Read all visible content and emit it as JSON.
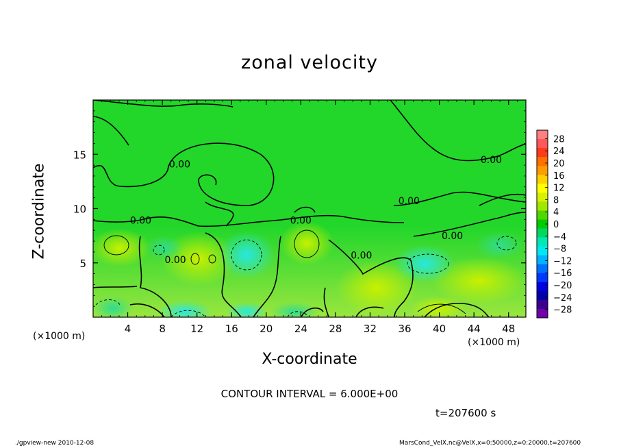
{
  "chart_data": {
    "type": "heatmap",
    "title": "zonal velocity",
    "xlabel": "X-coordinate",
    "ylabel": "Z-coordinate",
    "x_unit": "(×1000 m)",
    "xlim": [
      0,
      50
    ],
    "ylim": [
      0,
      20
    ],
    "x_ticks": [
      4,
      8,
      12,
      16,
      20,
      24,
      28,
      32,
      36,
      40,
      44,
      48
    ],
    "y_ticks": [
      5,
      10,
      15
    ],
    "colorbar": {
      "ticks": [
        28,
        24,
        20,
        16,
        12,
        8,
        4,
        0,
        -4,
        -8,
        -12,
        -16,
        -20,
        -24,
        -28
      ],
      "colors": [
        "#ff8080",
        "#ff5858",
        "#ff3a1a",
        "#ff7000",
        "#ff9c00",
        "#ffd000",
        "#ffff00",
        "#d8f000",
        "#a0e800",
        "#50d800",
        "#00cc00",
        "#00d860",
        "#00e8b8",
        "#00e8f0",
        "#00b4ff",
        "#0070ff",
        "#0038ff",
        "#0000e0",
        "#0000a8",
        "#3a0090",
        "#7000a8"
      ]
    },
    "contour_labels": [
      {
        "text": "0.00",
        "x": 10.0,
        "z": 13.8
      },
      {
        "text": "0.00",
        "x": 46.0,
        "z": 14.2
      },
      {
        "text": "0.00",
        "x": 5.5,
        "z": 8.6
      },
      {
        "text": "0.00",
        "x": 24.0,
        "z": 8.6
      },
      {
        "text": "0.00",
        "x": 36.5,
        "z": 10.4
      },
      {
        "text": "0.00",
        "x": 41.5,
        "z": 7.2
      },
      {
        "text": "0.00",
        "x": 9.5,
        "z": 5.0
      },
      {
        "text": "0.00",
        "x": 31.0,
        "z": 5.4
      }
    ],
    "contour_interval_text": "CONTOUR INTERVAL = 6.000E+00"
  },
  "time_label": "t=207600 s",
  "footer": {
    "left": "./gpview-new   2010-12-08",
    "right": "MarsCond_VelX.nc@VelX,x=0:50000,z=0:20000,t=207600"
  }
}
